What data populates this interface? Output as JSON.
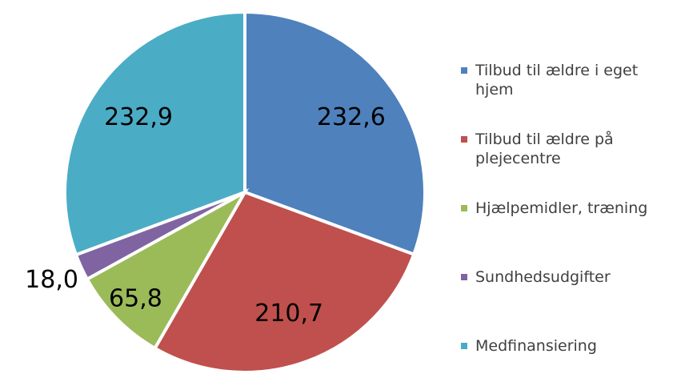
{
  "chart_data": {
    "type": "pie",
    "categories": [
      "Tilbud til ældre i eget hjem",
      "Tilbud til ældre på plejecentre",
      "Hjælpemidler, træning",
      "Sundhedsudgifter",
      "Medfinansiering"
    ],
    "values": [
      232.6,
      210.7,
      65.8,
      18.0,
      232.9
    ],
    "value_labels": [
      "232,6",
      "210,7",
      "65,8",
      "18,0",
      "232,9"
    ],
    "colors": [
      "#4f81bd",
      "#c0504d",
      "#9bbb59",
      "#8064a2",
      "#4bacc6"
    ]
  }
}
